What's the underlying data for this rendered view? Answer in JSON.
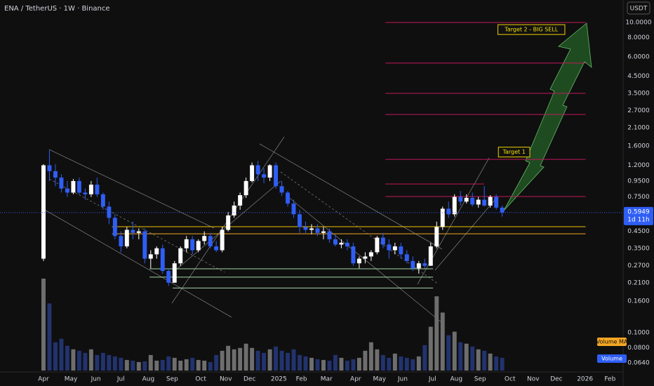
{
  "header": {
    "symbol": "ENA / TetherUS · 1W · Binance",
    "currency": "USDT"
  },
  "chart_data": {
    "type": "candlestick",
    "log_scale": true,
    "xlim": [
      -7.3,
      97.3
    ],
    "xticks": [
      {
        "value": 0,
        "label": "Apr"
      },
      {
        "value": 4.6,
        "label": "May"
      },
      {
        "value": 8.8,
        "label": "Jun"
      },
      {
        "value": 13.0,
        "label": "Jul"
      },
      {
        "value": 17.6,
        "label": "Aug"
      },
      {
        "value": 21.6,
        "label": "Sep"
      },
      {
        "value": 26.4,
        "label": "Oct"
      },
      {
        "value": 30.6,
        "label": "Nov"
      },
      {
        "value": 34.6,
        "label": "Dec"
      },
      {
        "value": 39.5,
        "label": "2025"
      },
      {
        "value": 43.3,
        "label": "Feb"
      },
      {
        "value": 47.5,
        "label": "Mar"
      },
      {
        "value": 52.4,
        "label": "Apr"
      },
      {
        "value": 56.4,
        "label": "May"
      },
      {
        "value": 60.3,
        "label": "Jun"
      },
      {
        "value": 65.3,
        "label": "Jul"
      },
      {
        "value": 69.3,
        "label": "Aug"
      },
      {
        "value": 73.3,
        "label": "Sep"
      },
      {
        "value": 78.3,
        "label": "Oct"
      },
      {
        "value": 82.2,
        "label": "Nov"
      },
      {
        "value": 86.1,
        "label": "Dec"
      },
      {
        "value": 90.9,
        "label": "2026"
      },
      {
        "value": 95.1,
        "label": "Feb"
      }
    ],
    "ylim": [
      0.0558,
      13.96
    ],
    "yticks": [
      {
        "value": 10,
        "label": "10.0000"
      },
      {
        "value": 8,
        "label": "8.0000"
      },
      {
        "value": 6,
        "label": "6.0000"
      },
      {
        "value": 4.5,
        "label": "4.5000"
      },
      {
        "value": 3.5,
        "label": "3.5000"
      },
      {
        "value": 2.7,
        "label": "2.7000"
      },
      {
        "value": 2.1,
        "label": "2.1000"
      },
      {
        "value": 1.6,
        "label": "1.6000"
      },
      {
        "value": 1.2,
        "label": "1.2000"
      },
      {
        "value": 0.95,
        "label": "0.9500"
      },
      {
        "value": 0.75,
        "label": "0.7500"
      },
      {
        "value": 0.45,
        "label": "0.4500"
      },
      {
        "value": 0.35,
        "label": "0.3500"
      },
      {
        "value": 0.27,
        "label": "0.2700"
      },
      {
        "value": 0.21,
        "label": "0.2100"
      },
      {
        "value": 0.16,
        "label": "0.1600"
      },
      {
        "value": 0.1,
        "label": "0.1000"
      },
      {
        "value": 0.08,
        "label": "0.0800"
      },
      {
        "value": 0.064,
        "label": "0.0640"
      }
    ],
    "x": [
      0,
      1,
      2,
      3,
      4,
      5,
      6,
      7,
      8,
      9,
      10,
      11,
      12,
      13,
      14,
      15,
      16,
      17,
      18,
      19,
      20,
      21,
      22,
      23,
      24,
      25,
      26,
      27,
      28,
      29,
      30,
      31,
      32,
      33,
      34,
      35,
      36,
      37,
      38,
      39,
      40,
      41,
      42,
      43,
      44,
      45,
      46,
      47,
      48,
      49,
      50,
      51,
      52,
      53,
      54,
      55,
      56,
      57,
      58,
      59,
      60,
      61,
      62,
      63,
      64,
      65,
      66,
      67,
      68,
      69,
      70,
      71,
      72,
      73,
      74,
      75,
      76,
      77
    ],
    "open": [
      0.3,
      1.2,
      1.1,
      1.0,
      0.85,
      0.8,
      0.95,
      0.8,
      0.78,
      0.9,
      0.78,
      0.65,
      0.55,
      0.42,
      0.36,
      0.46,
      0.44,
      0.45,
      0.3,
      0.32,
      0.35,
      0.25,
      0.21,
      0.28,
      0.35,
      0.4,
      0.34,
      0.39,
      0.42,
      0.36,
      0.34,
      0.46,
      0.57,
      0.66,
      0.77,
      0.95,
      1.2,
      1.05,
      1.0,
      1.2,
      0.88,
      0.8,
      0.68,
      0.58,
      0.48,
      0.46,
      0.47,
      0.44,
      0.45,
      0.4,
      0.37,
      0.38,
      0.36,
      0.28,
      0.3,
      0.31,
      0.33,
      0.41,
      0.37,
      0.34,
      0.36,
      0.32,
      0.29,
      0.26,
      0.28,
      0.27,
      0.36,
      0.48,
      0.63,
      0.58,
      0.75,
      0.7,
      0.74,
      0.67,
      0.72,
      0.66,
      0.75,
      0.64
    ],
    "high": [
      1.22,
      1.5,
      1.22,
      1.05,
      0.95,
      0.98,
      1.0,
      0.85,
      0.95,
      1.0,
      0.8,
      0.7,
      0.58,
      0.45,
      0.48,
      0.52,
      0.47,
      0.47,
      0.34,
      0.36,
      0.37,
      0.26,
      0.29,
      0.36,
      0.42,
      0.42,
      0.4,
      0.45,
      0.44,
      0.39,
      0.48,
      0.6,
      0.7,
      0.8,
      1.0,
      1.25,
      1.28,
      1.15,
      1.22,
      1.25,
      0.95,
      0.82,
      0.72,
      0.62,
      0.52,
      0.5,
      0.5,
      0.48,
      0.47,
      0.43,
      0.4,
      0.4,
      0.38,
      0.31,
      0.33,
      0.34,
      0.42,
      0.44,
      0.4,
      0.38,
      0.38,
      0.34,
      0.31,
      0.29,
      0.3,
      0.38,
      0.52,
      0.65,
      0.7,
      0.78,
      0.82,
      0.78,
      0.8,
      0.75,
      0.88,
      0.77,
      0.78,
      0.66
    ],
    "low": [
      0.29,
      0.95,
      0.88,
      0.8,
      0.75,
      0.78,
      0.78,
      0.72,
      0.75,
      0.75,
      0.62,
      0.5,
      0.4,
      0.33,
      0.35,
      0.4,
      0.4,
      0.28,
      0.26,
      0.3,
      0.24,
      0.2,
      0.21,
      0.27,
      0.33,
      0.32,
      0.33,
      0.37,
      0.35,
      0.33,
      0.33,
      0.45,
      0.55,
      0.62,
      0.74,
      0.93,
      0.95,
      0.92,
      0.95,
      0.85,
      0.76,
      0.65,
      0.55,
      0.44,
      0.44,
      0.43,
      0.42,
      0.4,
      0.38,
      0.36,
      0.35,
      0.34,
      0.27,
      0.26,
      0.28,
      0.29,
      0.32,
      0.35,
      0.3,
      0.32,
      0.3,
      0.28,
      0.25,
      0.24,
      0.26,
      0.27,
      0.35,
      0.46,
      0.55,
      0.56,
      0.66,
      0.68,
      0.65,
      0.64,
      0.65,
      0.64,
      0.62,
      0.56
    ],
    "close": [
      1.2,
      1.1,
      1.0,
      0.85,
      0.8,
      0.95,
      0.8,
      0.78,
      0.9,
      0.78,
      0.65,
      0.55,
      0.42,
      0.36,
      0.46,
      0.44,
      0.45,
      0.3,
      0.32,
      0.35,
      0.25,
      0.21,
      0.28,
      0.35,
      0.4,
      0.34,
      0.39,
      0.42,
      0.36,
      0.34,
      0.46,
      0.57,
      0.66,
      0.77,
      0.95,
      1.2,
      1.05,
      1.0,
      1.2,
      0.88,
      0.8,
      0.68,
      0.58,
      0.48,
      0.46,
      0.47,
      0.44,
      0.45,
      0.4,
      0.37,
      0.38,
      0.36,
      0.28,
      0.3,
      0.31,
      0.33,
      0.41,
      0.37,
      0.34,
      0.36,
      0.32,
      0.29,
      0.26,
      0.28,
      0.27,
      0.36,
      0.48,
      0.63,
      0.58,
      0.75,
      0.7,
      0.74,
      0.67,
      0.72,
      0.66,
      0.75,
      0.64,
      0.5949
    ],
    "up_color": "#ffffff",
    "down_color": "#2f5ef5",
    "volume": [
      130,
      95,
      40,
      45,
      35,
      30,
      28,
      25,
      30,
      22,
      25,
      22,
      20,
      18,
      15,
      14,
      12,
      13,
      22,
      14,
      15,
      20,
      18,
      14,
      16,
      18,
      15,
      14,
      12,
      22,
      28,
      35,
      30,
      32,
      38,
      32,
      28,
      25,
      30,
      34,
      28,
      25,
      30,
      22,
      20,
      18,
      16,
      15,
      14,
      22,
      18,
      14,
      16,
      18,
      28,
      40,
      30,
      22,
      18,
      24,
      20,
      18,
      16,
      20,
      36,
      62,
      105,
      82,
      50,
      55,
      40,
      38,
      34,
      30,
      28,
      24,
      20,
      18
    ],
    "volume_up_color": "#6e6e6e",
    "volume_down_color": "#22336e",
    "levels": [
      {
        "value": 10.0,
        "color": "#c2185b",
        "x": [
          57.4,
          91.0
        ]
      },
      {
        "value": 5.47,
        "color": "#c2185b",
        "x": [
          57.4,
          91.0
        ]
      },
      {
        "value": 3.49,
        "color": "#c2185b",
        "x": [
          57.4,
          91.0
        ]
      },
      {
        "value": 2.55,
        "color": "#c2185b",
        "x": [
          57.4,
          91.0
        ]
      },
      {
        "value": 1.31,
        "color": "#c2185b",
        "x": [
          57.4,
          91.0
        ]
      },
      {
        "value": 0.91,
        "color": "#c2185b",
        "x": [
          57.4,
          74.0
        ]
      },
      {
        "value": 0.755,
        "color": "#c2185b",
        "x": [
          57.4,
          91.0
        ]
      },
      {
        "value": 0.482,
        "color": "#f0c000",
        "x": [
          11.5,
          91.0
        ]
      },
      {
        "value": 0.434,
        "color": "#f5a623",
        "x": [
          11.5,
          91.0
        ]
      },
      {
        "value": 0.258,
        "color": "#a5d6a7",
        "x": [
          17.8,
          65.4
        ]
      },
      {
        "value": 0.228,
        "color": "#a5d6a7",
        "x": [
          17.8,
          65.4
        ]
      },
      {
        "value": 0.194,
        "color": "#a5d6a7",
        "x": [
          21.7,
          65.4
        ]
      }
    ],
    "annotations": [
      {
        "text": "Target 2 - BIG SELL",
        "x": 81.9,
        "y": 9.0
      },
      {
        "text": "Target 1",
        "x": 79.0,
        "y": 1.46
      }
    ],
    "last_price": {
      "value": 0.5949,
      "countdown": "1d 11h"
    },
    "legend": [
      "Volume MA",
      "Volume"
    ]
  }
}
